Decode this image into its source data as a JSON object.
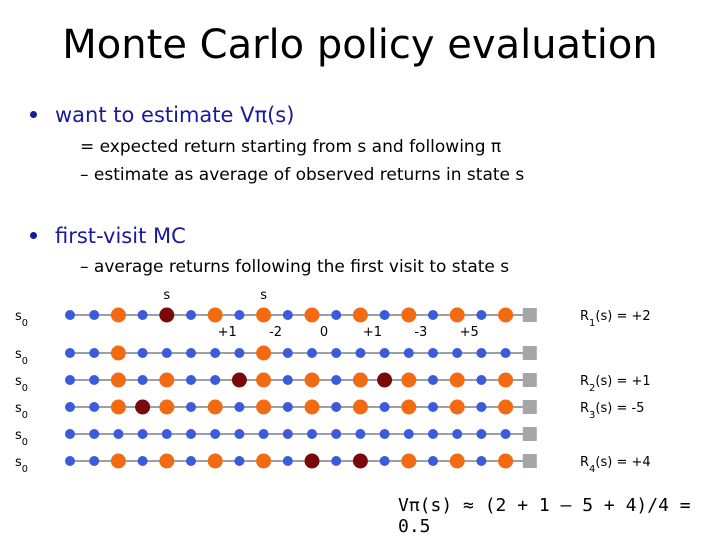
{
  "title": "Monte Carlo policy evaluation",
  "bullet1": {
    "text": "want to estimate Vπ(s)",
    "sub1": "= expected return starting from s and following π",
    "sub2": "–  estimate as average of observed returns in state s"
  },
  "bullet2": {
    "text": "first-visit MC",
    "sub1": "–  average returns following the first visit to state s"
  },
  "episodes": [
    {
      "start": "s0",
      "dots": [
        "b",
        "b",
        "o",
        "b",
        "d",
        "b",
        "o",
        "b",
        "o",
        "b",
        "o",
        "b",
        "o",
        "b",
        "o",
        "b",
        "o",
        "b",
        "o",
        "g"
      ],
      "s_markers": [
        {
          "idx": 4,
          "label": "s"
        },
        {
          "idx": 8,
          "label": "s"
        }
      ],
      "rewards": [
        {
          "idx": 6,
          "label": "+1"
        },
        {
          "idx": 8,
          "label": "-2"
        },
        {
          "idx": 10,
          "label": "0"
        },
        {
          "idx": 12,
          "label": "+1"
        },
        {
          "idx": 14,
          "label": "-3"
        },
        {
          "idx": 16,
          "label": "+5"
        }
      ],
      "result": "R1(s) = +2"
    },
    {
      "start": "s0",
      "dots": [
        "b",
        "b",
        "o",
        "b",
        "b",
        "b",
        "b",
        "b",
        "o",
        "b",
        "b",
        "b",
        "b",
        "b",
        "b",
        "b",
        "b",
        "b",
        "b",
        "g"
      ],
      "s_markers": [],
      "rewards": [],
      "result": ""
    },
    {
      "start": "s0",
      "dots": [
        "b",
        "b",
        "o",
        "b",
        "o",
        "b",
        "b",
        "d",
        "o",
        "b",
        "o",
        "b",
        "o",
        "d",
        "o",
        "b",
        "o",
        "b",
        "o",
        "g"
      ],
      "s_markers": [],
      "rewards": [],
      "result": "R2(s) = +1"
    },
    {
      "start": "s0",
      "dots": [
        "b",
        "b",
        "o",
        "d",
        "o",
        "b",
        "o",
        "b",
        "o",
        "b",
        "o",
        "b",
        "o",
        "b",
        "o",
        "b",
        "o",
        "b",
        "o",
        "g"
      ],
      "s_markers": [],
      "rewards": [],
      "result": "R3(s) = -5"
    },
    {
      "start": "s0",
      "dots": [
        "b",
        "b",
        "b",
        "b",
        "b",
        "b",
        "b",
        "b",
        "b",
        "b",
        "b",
        "b",
        "b",
        "b",
        "b",
        "b",
        "b",
        "b",
        "b",
        "g"
      ],
      "s_markers": [],
      "rewards": [],
      "result": ""
    },
    {
      "start": "s0",
      "dots": [
        "b",
        "b",
        "o",
        "b",
        "o",
        "b",
        "o",
        "b",
        "o",
        "b",
        "d",
        "b",
        "d",
        "b",
        "o",
        "b",
        "o",
        "b",
        "o",
        "g"
      ],
      "s_markers": [],
      "rewards": [],
      "result": "R4(s) = +4"
    }
  ],
  "colors": {
    "b": "#3b5bdb",
    "o": "#f26b12",
    "d": "#7a0a0a",
    "g": "#a6a6a6",
    "line": "#9aa0a6",
    "bullet": "#1a1a9a"
  },
  "formula": "Vπ(s) ≈ (2 + 1 – 5 + 4)/4 = 0.5"
}
